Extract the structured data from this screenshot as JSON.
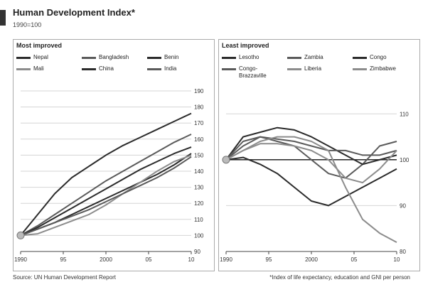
{
  "header": {
    "title": "Human Development Index*",
    "subtitle": "1990=100"
  },
  "footer": {
    "source": "Source: UN Human Development Report",
    "note": "*Index of life expectancy, education and GNI per person"
  },
  "colors": {
    "dark": "#2b2b2b",
    "mid": "#5a5a5a",
    "light": "#8c8c8c",
    "ref_line": "#333333",
    "start_marker": "#bbbbbb"
  },
  "chart_data": [
    {
      "type": "line",
      "panel_title": "Most improved",
      "legend_position": "top",
      "x": [
        1990,
        1992,
        1994,
        1996,
        1998,
        2000,
        2002,
        2004,
        2006,
        2008,
        2010
      ],
      "x_tick_labels": [
        "1990",
        "95",
        "2000",
        "05",
        "10"
      ],
      "x_tick_values": [
        1990,
        1995,
        2000,
        2005,
        2010
      ],
      "ylim": [
        90,
        190
      ],
      "y_ticks": [
        90,
        100,
        110,
        120,
        130,
        140,
        150,
        160,
        170,
        180,
        190
      ],
      "y_tick_labels": [
        "90",
        "100",
        "110",
        "120",
        "130",
        "140",
        "150",
        "160",
        "170",
        "180",
        "190"
      ],
      "y_axis_side": "right",
      "reference_value": null,
      "series": [
        {
          "name": "Nepal",
          "color": "#2b2b2b",
          "values": [
            100,
            113,
            126,
            136,
            143,
            150,
            156,
            161,
            166,
            171,
            176
          ]
        },
        {
          "name": "Bangladesh",
          "color": "#5a5a5a",
          "values": [
            100,
            106,
            113,
            120,
            127,
            134,
            140,
            146,
            152,
            158,
            163
          ]
        },
        {
          "name": "Benin",
          "color": "#2b2b2b",
          "values": [
            100,
            104,
            108,
            113,
            118,
            123,
            128,
            133,
            138,
            144,
            151
          ]
        },
        {
          "name": "Mali",
          "color": "#8c8c8c",
          "values": [
            100,
            101,
            105,
            109,
            113,
            119,
            126,
            133,
            140,
            146,
            150
          ]
        },
        {
          "name": "China",
          "color": "#2b2b2b",
          "values": [
            100,
            105,
            111,
            117,
            123,
            129,
            135,
            141,
            146,
            151,
            155
          ]
        },
        {
          "name": "India",
          "color": "#5a5a5a",
          "values": [
            100,
            104,
            108,
            112,
            116,
            121,
            126,
            131,
            136,
            142,
            149
          ]
        }
      ]
    },
    {
      "type": "line",
      "panel_title": "Least improved",
      "legend_position": "top",
      "x": [
        1990,
        1992,
        1994,
        1996,
        1998,
        2000,
        2002,
        2004,
        2006,
        2008,
        2010
      ],
      "x_tick_labels": [
        "1990",
        "95",
        "2000",
        "05",
        "10"
      ],
      "x_tick_values": [
        1990,
        1995,
        2000,
        2005,
        2010
      ],
      "ylim": [
        80,
        115
      ],
      "y_ticks": [
        80,
        90,
        100,
        110
      ],
      "y_tick_labels": [
        "80",
        "90",
        "100",
        "110"
      ],
      "y_axis_side": "right",
      "reference_value": 100,
      "series": [
        {
          "name": "Lesotho",
          "color": "#2b2b2b",
          "values": [
            100,
            100.5,
            99,
            97,
            94,
            91,
            90,
            92,
            94,
            96,
            98
          ]
        },
        {
          "name": "Zambia",
          "color": "#5a5a5a",
          "values": [
            100,
            103,
            105,
            104,
            103,
            100,
            97,
            96,
            99,
            103,
            104
          ]
        },
        {
          "name": "Congo",
          "color": "#2b2b2b",
          "values": [
            100,
            105,
            106,
            107,
            106.5,
            105,
            103,
            101,
            99,
            100,
            101
          ]
        },
        {
          "name": "Congo-\nBrazzaville",
          "color": "#5a5a5a",
          "values": [
            100,
            104,
            105,
            104.5,
            104,
            103,
            102,
            102,
            101,
            101,
            102
          ]
        },
        {
          "name": "Liberia",
          "color": "#8c8c8c",
          "values": [
            100,
            102,
            103.5,
            103.5,
            103,
            102,
            100,
            96,
            95,
            98,
            102
          ]
        },
        {
          "name": "Zimbabwe",
          "color": "#8c8c8c",
          "values": [
            100,
            102,
            104,
            105,
            105,
            104,
            102,
            94,
            87,
            84,
            82
          ]
        }
      ]
    }
  ]
}
